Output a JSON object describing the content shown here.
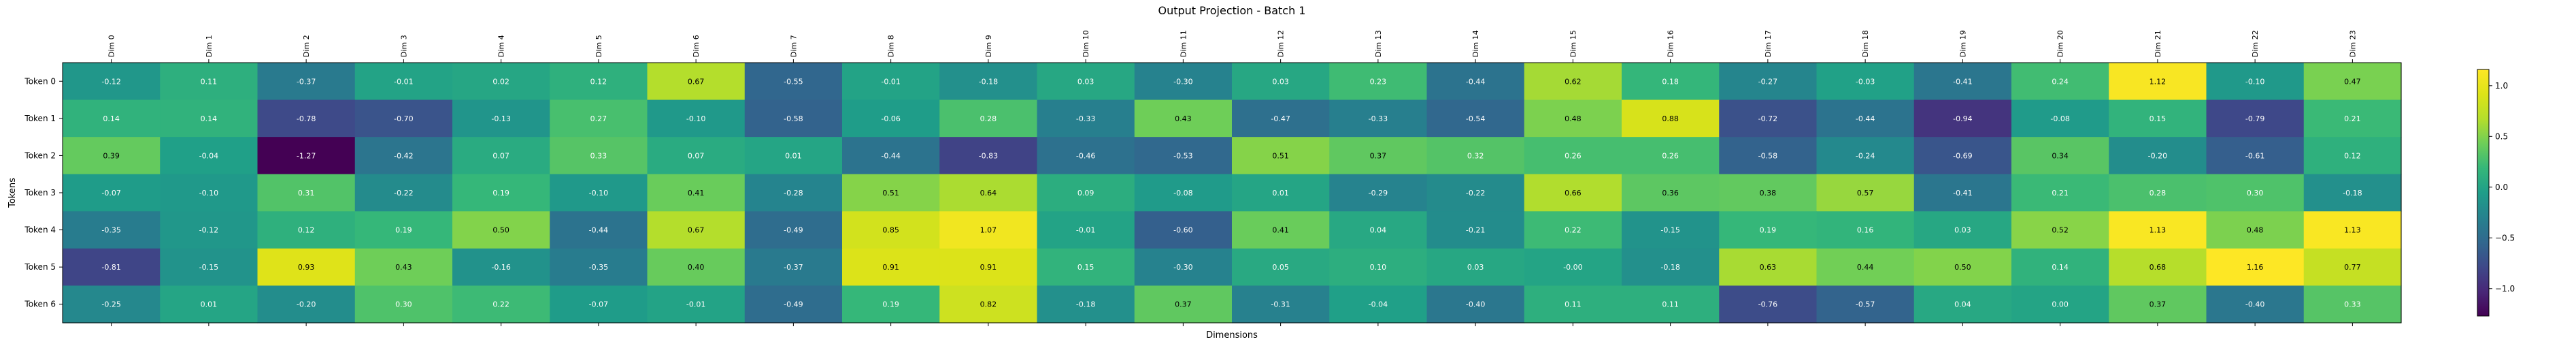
{
  "chart_data": {
    "type": "heatmap",
    "title": "Output Projection - Batch 1",
    "xlabel": "Dimensions",
    "ylabel": "Tokens",
    "x_categories": [
      "Dim 0",
      "Dim 1",
      "Dim 2",
      "Dim 3",
      "Dim 4",
      "Dim 5",
      "Dim 6",
      "Dim 7",
      "Dim 8",
      "Dim 9",
      "Dim 10",
      "Dim 11",
      "Dim 12",
      "Dim 13",
      "Dim 14",
      "Dim 15",
      "Dim 16",
      "Dim 17",
      "Dim 18",
      "Dim 19",
      "Dim 20",
      "Dim 21",
      "Dim 22",
      "Dim 23"
    ],
    "y_categories": [
      "Token 0",
      "Token 1",
      "Token 2",
      "Token 3",
      "Token 4",
      "Token 5",
      "Token 6"
    ],
    "values": [
      [
        -0.12,
        0.11,
        -0.37,
        -0.01,
        0.02,
        0.12,
        0.67,
        -0.55,
        -0.01,
        -0.18,
        0.03,
        -0.3,
        0.03,
        0.23,
        -0.44,
        0.62,
        0.18,
        -0.27,
        -0.03,
        -0.41,
        0.24,
        1.12,
        -0.1,
        0.47
      ],
      [
        0.14,
        0.14,
        -0.78,
        -0.7,
        -0.13,
        0.27,
        -0.1,
        -0.58,
        -0.06,
        0.28,
        -0.33,
        0.43,
        -0.47,
        -0.33,
        -0.54,
        0.48,
        0.88,
        -0.72,
        -0.44,
        -0.94,
        -0.08,
        0.15,
        -0.79,
        0.21
      ],
      [
        0.39,
        -0.04,
        -1.27,
        -0.42,
        0.07,
        0.33,
        0.07,
        0.01,
        -0.44,
        -0.83,
        -0.46,
        -0.53,
        0.51,
        0.37,
        0.32,
        0.26,
        0.26,
        -0.58,
        -0.24,
        -0.69,
        0.34,
        -0.2,
        -0.61,
        0.12
      ],
      [
        -0.07,
        -0.1,
        0.31,
        -0.22,
        0.19,
        -0.1,
        0.41,
        -0.28,
        0.51,
        0.64,
        0.09,
        -0.08,
        0.01,
        -0.29,
        -0.22,
        0.66,
        0.36,
        0.38,
        0.57,
        -0.41,
        0.21,
        0.28,
        0.3,
        -0.18
      ],
      [
        -0.35,
        -0.12,
        0.12,
        0.19,
        0.5,
        -0.44,
        0.67,
        -0.49,
        0.85,
        1.07,
        -0.01,
        -0.6,
        0.41,
        0.04,
        -0.21,
        0.22,
        -0.15,
        0.19,
        0.16,
        0.03,
        0.52,
        1.13,
        0.48,
        1.13
      ],
      [
        -0.81,
        -0.15,
        0.93,
        0.43,
        -0.16,
        -0.35,
        0.4,
        -0.37,
        0.91,
        0.91,
        0.15,
        -0.3,
        0.05,
        0.1,
        0.03,
        -0.0,
        -0.18,
        0.63,
        0.44,
        0.5,
        0.14,
        0.68,
        1.16,
        0.77
      ],
      [
        -0.25,
        0.01,
        -0.2,
        0.3,
        0.22,
        -0.07,
        -0.01,
        -0.49,
        0.19,
        0.82,
        -0.18,
        0.37,
        -0.31,
        -0.04,
        -0.4,
        0.11,
        0.11,
        -0.76,
        -0.57,
        0.04,
        0.0,
        0.37,
        -0.4,
        0.33
      ]
    ],
    "value_labels": [
      [
        "-0.12",
        "0.11",
        "-0.37",
        "-0.01",
        "0.02",
        "0.12",
        "0.67",
        "-0.55",
        "-0.01",
        "-0.18",
        "0.03",
        "-0.30",
        "0.03",
        "0.23",
        "-0.44",
        "0.62",
        "0.18",
        "-0.27",
        "-0.03",
        "-0.41",
        "0.24",
        "1.12",
        "-0.10",
        "0.47"
      ],
      [
        "0.14",
        "0.14",
        "-0.78",
        "-0.70",
        "-0.13",
        "0.27",
        "-0.10",
        "-0.58",
        "-0.06",
        "0.28",
        "-0.33",
        "0.43",
        "-0.47",
        "-0.33",
        "-0.54",
        "0.48",
        "0.88",
        "-0.72",
        "-0.44",
        "-0.94",
        "-0.08",
        "0.15",
        "-0.79",
        "0.21"
      ],
      [
        "0.39",
        "-0.04",
        "-1.27",
        "-0.42",
        "0.07",
        "0.33",
        "0.07",
        "0.01",
        "-0.44",
        "-0.83",
        "-0.46",
        "-0.53",
        "0.51",
        "0.37",
        "0.32",
        "0.26",
        "0.26",
        "-0.58",
        "-0.24",
        "-0.69",
        "0.34",
        "-0.20",
        "-0.61",
        "0.12"
      ],
      [
        "-0.07",
        "-0.10",
        "0.31",
        "-0.22",
        "0.19",
        "-0.10",
        "0.41",
        "-0.28",
        "0.51",
        "0.64",
        "0.09",
        "-0.08",
        "0.01",
        "-0.29",
        "-0.22",
        "0.66",
        "0.36",
        "0.38",
        "0.57",
        "-0.41",
        "0.21",
        "0.28",
        "0.30",
        "-0.18"
      ],
      [
        "-0.35",
        "-0.12",
        "0.12",
        "0.19",
        "0.50",
        "-0.44",
        "0.67",
        "-0.49",
        "0.85",
        "1.07",
        "-0.01",
        "-0.60",
        "0.41",
        "0.04",
        "-0.21",
        "0.22",
        "-0.15",
        "0.19",
        "0.16",
        "0.03",
        "0.52",
        "1.13",
        "0.48",
        "1.13"
      ],
      [
        "-0.81",
        "-0.15",
        "0.93",
        "0.43",
        "-0.16",
        "-0.35",
        "0.40",
        "-0.37",
        "0.91",
        "0.91",
        "0.15",
        "-0.30",
        "0.05",
        "0.10",
        "0.03",
        "-0.00",
        "-0.18",
        "0.63",
        "0.44",
        "0.50",
        "0.14",
        "0.68",
        "1.16",
        "0.77"
      ],
      [
        "-0.25",
        "0.01",
        "-0.20",
        "0.30",
        "0.22",
        "-0.07",
        "-0.01",
        "-0.49",
        "0.19",
        "0.82",
        "-0.18",
        "0.37",
        "-0.31",
        "-0.04",
        "-0.40",
        "0.11",
        "0.11",
        "-0.76",
        "-0.57",
        "0.04",
        "0.00",
        "0.37",
        "-0.40",
        "0.33"
      ]
    ],
    "colormap": "viridis",
    "vmin": -1.27,
    "vmax": 1.16,
    "colorbar_ticks": [
      -1.0,
      -0.5,
      0.0,
      0.5,
      1.0
    ],
    "colorbar_tick_labels": [
      "−1.0",
      "−0.5",
      "0.0",
      "0.5",
      "1.0"
    ],
    "x_tick_position": "top",
    "grid": false
  }
}
